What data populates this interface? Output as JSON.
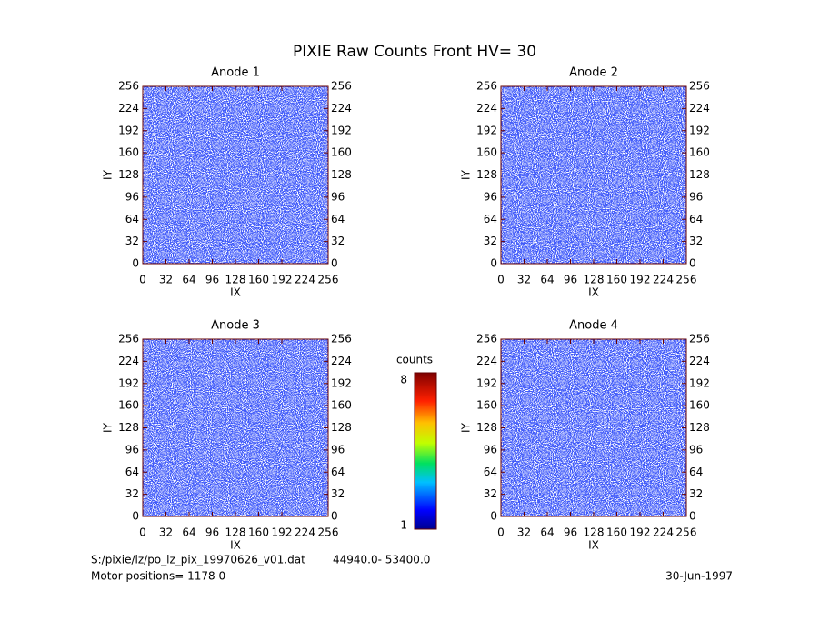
{
  "title": "PIXIE Raw Counts Front HV= 30",
  "chart_data": [
    {
      "type": "heatmap",
      "title": "Anode 1",
      "xlabel": "IX",
      "ylabel": "IY",
      "xlim": [
        0,
        256
      ],
      "ylim": [
        0,
        256
      ],
      "y2lim": [
        0,
        256
      ],
      "xticks": [
        0,
        32,
        64,
        96,
        128,
        160,
        192,
        224,
        256
      ],
      "yticks": [
        0,
        32,
        64,
        96,
        128,
        160,
        192,
        224,
        256
      ],
      "y2ticks": [
        0,
        32,
        64,
        96,
        128,
        160,
        192,
        224,
        256
      ]
    },
    {
      "type": "heatmap",
      "title": "Anode 2",
      "xlabel": "IX",
      "ylabel": "IY",
      "xlim": [
        0,
        256
      ],
      "ylim": [
        0,
        256
      ],
      "y2lim": [
        0,
        256
      ],
      "xticks": [
        0,
        32,
        64,
        96,
        128,
        160,
        192,
        224,
        256
      ],
      "yticks": [
        0,
        32,
        64,
        96,
        128,
        160,
        192,
        224,
        256
      ],
      "y2ticks": [
        0,
        32,
        64,
        96,
        128,
        160,
        192,
        224,
        256
      ]
    },
    {
      "type": "heatmap",
      "title": "Anode 3",
      "xlabel": "IX",
      "ylabel": "IY",
      "xlim": [
        0,
        256
      ],
      "ylim": [
        0,
        256
      ],
      "y2lim": [
        0,
        256
      ],
      "xticks": [
        0,
        32,
        64,
        96,
        128,
        160,
        192,
        224,
        256
      ],
      "yticks": [
        0,
        32,
        64,
        96,
        128,
        160,
        192,
        224,
        256
      ],
      "y2ticks": [
        0,
        32,
        64,
        96,
        128,
        160,
        192,
        224,
        256
      ]
    },
    {
      "type": "heatmap",
      "title": "Anode 4",
      "xlabel": "IX",
      "ylabel": "IY",
      "xlim": [
        0,
        256
      ],
      "ylim": [
        0,
        256
      ],
      "y2lim": [
        0,
        256
      ],
      "xticks": [
        0,
        32,
        64,
        96,
        128,
        160,
        192,
        224,
        256
      ],
      "yticks": [
        0,
        32,
        64,
        96,
        128,
        160,
        192,
        224,
        256
      ],
      "y2ticks": [
        0,
        32,
        64,
        96,
        128,
        160,
        192,
        224,
        256
      ]
    }
  ],
  "colorbar": {
    "label": "counts",
    "lim": [
      1,
      8
    ],
    "ticks": [
      1,
      8
    ]
  },
  "footer": {
    "file": "S:/pixie/lz/po_lz_pix_19970626_v01.dat",
    "range": "44940.0- 53400.0",
    "motor": "Motor positions= 1178 0",
    "date": "30-Jun-1997"
  }
}
